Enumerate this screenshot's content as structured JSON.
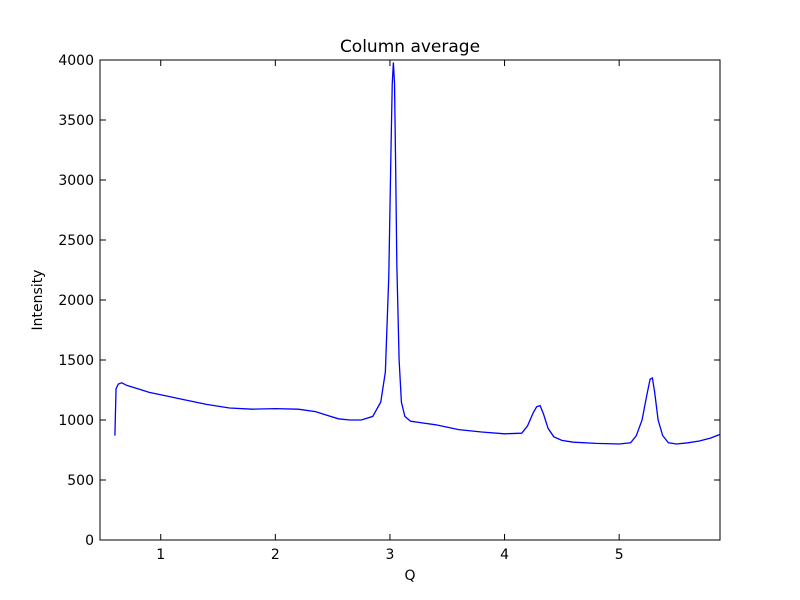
{
  "chart_data": {
    "type": "line",
    "title": "Column average",
    "xlabel": "Q",
    "ylabel": "Intensity",
    "xlim": [
      0.47,
      5.88
    ],
    "ylim": [
      0,
      4000
    ],
    "xticks": [
      1,
      2,
      3,
      4,
      5
    ],
    "yticks": [
      0,
      500,
      1000,
      1500,
      2000,
      2500,
      3000,
      3500,
      4000
    ],
    "grid": false,
    "line_color": "#0000ff",
    "series": [
      {
        "x": [
          0.6,
          0.61,
          0.63,
          0.66,
          0.7,
          0.8,
          0.9,
          1.0,
          1.2,
          1.4,
          1.6,
          1.8,
          2.0,
          2.2,
          2.35,
          2.45,
          2.55,
          2.65,
          2.75,
          2.85,
          2.92,
          2.96,
          2.99,
          3.01,
          3.02,
          3.03,
          3.04,
          3.05,
          3.06,
          3.08,
          3.1,
          3.13,
          3.18,
          3.25,
          3.4,
          3.6,
          3.8,
          4.0,
          4.15,
          4.2,
          4.25,
          4.28,
          4.31,
          4.34,
          4.38,
          4.43,
          4.5,
          4.6,
          4.8,
          5.0,
          5.1,
          5.15,
          5.2,
          5.24,
          5.27,
          5.29,
          5.31,
          5.34,
          5.38,
          5.43,
          5.5,
          5.6,
          5.7,
          5.8,
          5.88
        ],
        "y": [
          870,
          1260,
          1300,
          1310,
          1290,
          1260,
          1230,
          1210,
          1170,
          1130,
          1100,
          1090,
          1095,
          1090,
          1070,
          1040,
          1010,
          1000,
          1000,
          1030,
          1150,
          1400,
          2200,
          3300,
          3800,
          3980,
          3800,
          3100,
          2300,
          1500,
          1150,
          1030,
          990,
          980,
          960,
          920,
          900,
          885,
          890,
          950,
          1060,
          1110,
          1120,
          1050,
          930,
          860,
          830,
          815,
          805,
          800,
          810,
          870,
          1000,
          1200,
          1340,
          1350,
          1230,
          1000,
          870,
          810,
          800,
          810,
          825,
          850,
          880
        ]
      }
    ]
  }
}
